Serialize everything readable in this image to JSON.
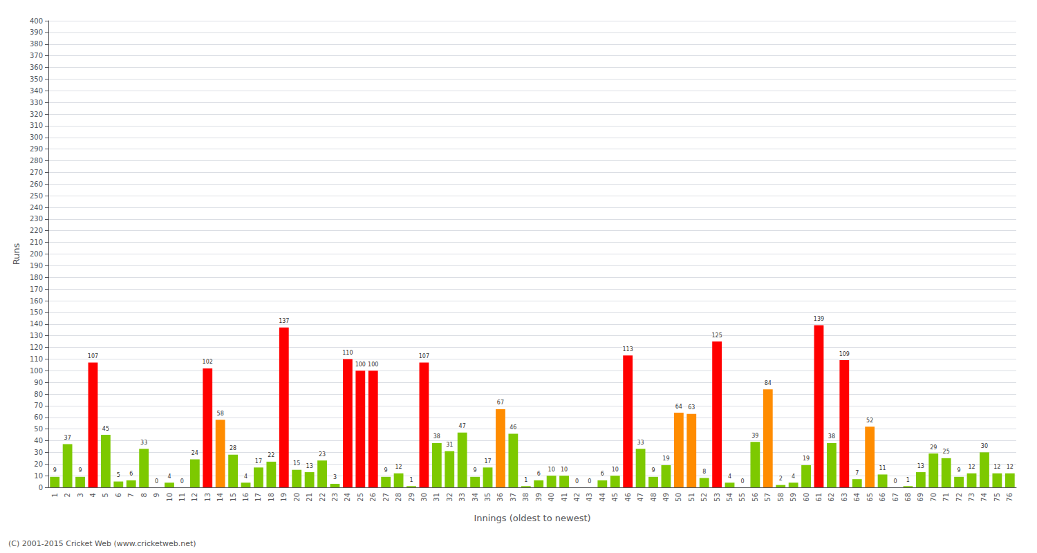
{
  "chart_data": {
    "type": "bar",
    "xlabel": "Innings (oldest to newest)",
    "ylabel": "Runs",
    "annotations": [
      "(C) 2001-2015 Cricket Web (www.cricketweb.net)"
    ],
    "categories": [
      "1",
      "2",
      "3",
      "4",
      "5",
      "6",
      "7",
      "8",
      "9",
      "10",
      "11",
      "12",
      "13",
      "14",
      "15",
      "16",
      "17",
      "18",
      "19",
      "20",
      "21",
      "22",
      "23",
      "24",
      "25",
      "26",
      "27",
      "28",
      "29",
      "30",
      "31",
      "32",
      "33",
      "34",
      "35",
      "36",
      "37",
      "38",
      "39",
      "40",
      "41",
      "42",
      "43",
      "44",
      "45",
      "46",
      "47",
      "48",
      "49",
      "50",
      "51",
      "52",
      "53",
      "54",
      "55",
      "56",
      "57",
      "58",
      "59",
      "60",
      "61",
      "62",
      "63",
      "64",
      "65",
      "66",
      "67",
      "68",
      "69",
      "70",
      "71",
      "72",
      "73",
      "74",
      "75",
      "76"
    ],
    "values": [
      9,
      37,
      9,
      107,
      45,
      5,
      6,
      33,
      0,
      4,
      0,
      24,
      102,
      58,
      28,
      4,
      17,
      22,
      137,
      15,
      13,
      23,
      3,
      110,
      100,
      100,
      9,
      12,
      1,
      107,
      38,
      31,
      47,
      9,
      17,
      67,
      46,
      1,
      6,
      10,
      10,
      0,
      0,
      6,
      10,
      113,
      33,
      9,
      19,
      64,
      63,
      8,
      125,
      4,
      0,
      39,
      84,
      2,
      4,
      19,
      139,
      38,
      109,
      7,
      52,
      11,
      0,
      1,
      13,
      29,
      25,
      9,
      12,
      30,
      12,
      12
    ],
    "colors": [
      "#7dc900",
      "#7dc900",
      "#7dc900",
      "#ff0000",
      "#7dc900",
      "#7dc900",
      "#7dc900",
      "#7dc900",
      "#7dc900",
      "#7dc900",
      "#7dc900",
      "#7dc900",
      "#ff0000",
      "#ff8c00",
      "#7dc900",
      "#7dc900",
      "#7dc900",
      "#7dc900",
      "#ff0000",
      "#7dc900",
      "#7dc900",
      "#7dc900",
      "#7dc900",
      "#ff0000",
      "#ff0000",
      "#ff0000",
      "#7dc900",
      "#7dc900",
      "#7dc900",
      "#ff0000",
      "#7dc900",
      "#7dc900",
      "#7dc900",
      "#7dc900",
      "#7dc900",
      "#ff8c00",
      "#7dc900",
      "#7dc900",
      "#7dc900",
      "#7dc900",
      "#7dc900",
      "#7dc900",
      "#7dc900",
      "#7dc900",
      "#7dc900",
      "#ff0000",
      "#7dc900",
      "#7dc900",
      "#7dc900",
      "#ff8c00",
      "#ff8c00",
      "#7dc900",
      "#ff0000",
      "#7dc900",
      "#7dc900",
      "#7dc900",
      "#ff8c00",
      "#7dc900",
      "#7dc900",
      "#7dc900",
      "#ff0000",
      "#7dc900",
      "#ff0000",
      "#7dc900",
      "#ff8c00",
      "#7dc900",
      "#7dc900",
      "#7dc900",
      "#7dc900",
      "#7dc900",
      "#7dc900",
      "#7dc900",
      "#7dc900",
      "#7dc900",
      "#7dc900",
      "#7dc900"
    ],
    "ylim": [
      0,
      400
    ],
    "yticks": [
      0,
      10,
      20,
      30,
      40,
      50,
      60,
      70,
      80,
      90,
      100,
      110,
      120,
      130,
      140,
      150,
      160,
      170,
      180,
      190,
      200,
      210,
      220,
      230,
      240,
      250,
      260,
      270,
      280,
      290,
      300,
      310,
      320,
      330,
      340,
      350,
      360,
      370,
      380,
      390,
      400
    ],
    "grid": true,
    "data_labels": true
  }
}
